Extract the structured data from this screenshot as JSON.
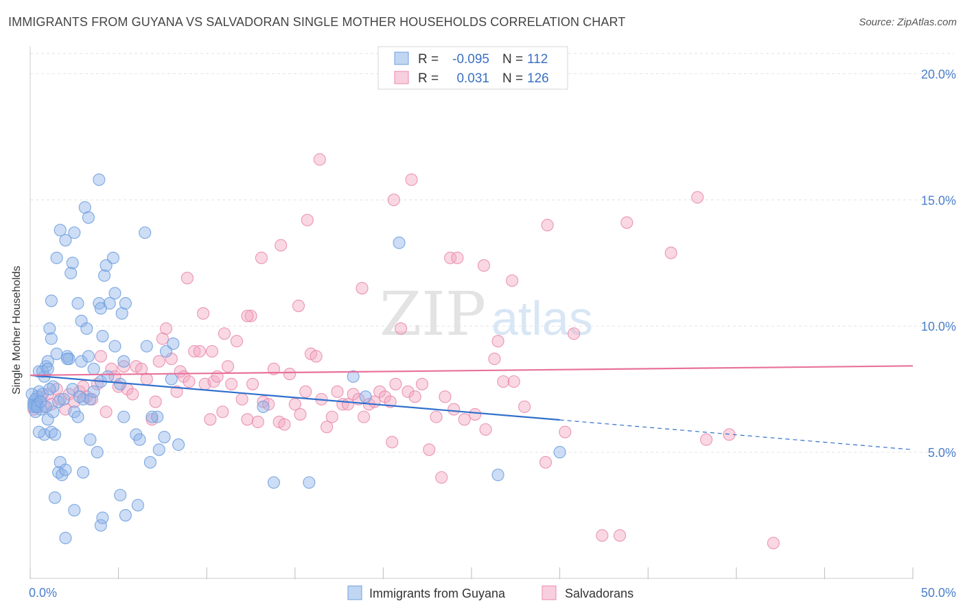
{
  "title": "IMMIGRANTS FROM GUYANA VS SALVADORAN SINGLE MOTHER HOUSEHOLDS CORRELATION CHART",
  "source": "Source: ZipAtlas.com",
  "watermark": {
    "zip": "ZIP",
    "atlas": "atlas"
  },
  "chart_data": {
    "type": "scatter",
    "ylabel": "Single Mother Households",
    "xlim": [
      0,
      50
    ],
    "ylim": [
      0,
      20.8
    ],
    "x_tick_labels": [
      "0.0%",
      "50.0%"
    ],
    "y_ticks": [
      5,
      10,
      15,
      20
    ],
    "y_tick_labels": [
      "5.0%",
      "10.0%",
      "15.0%",
      "20.0%"
    ],
    "grid": true,
    "legend": {
      "placement": "top-center",
      "rows": [
        {
          "r_label": "R =",
          "r_value": "-0.095",
          "n_label": "N =",
          "n_value": "112"
        },
        {
          "r_label": "R =",
          "r_value": "0.031",
          "n_label": "N =",
          "n_value": "126"
        }
      ]
    },
    "series": [
      {
        "name": "Immigrants from Guyana",
        "color": "#8db4e8",
        "line_color": "#2f6fcc",
        "trend": {
          "x0": 0,
          "y0": 8.05,
          "x1": 30,
          "y1": 6.28,
          "dash_to_x": 50,
          "dash_to_y": 5.1
        },
        "points": [
          [
            0.2,
            7.0
          ],
          [
            0.3,
            6.8
          ],
          [
            0.4,
            7.2
          ],
          [
            0.2,
            6.9
          ],
          [
            0.5,
            7.4
          ],
          [
            0.3,
            7.1
          ],
          [
            0.6,
            6.7
          ],
          [
            0.4,
            6.9
          ],
          [
            0.7,
            7.3
          ],
          [
            0.5,
            8.2
          ],
          [
            0.8,
            8.0
          ],
          [
            0.9,
            8.4
          ],
          [
            1.0,
            8.6
          ],
          [
            1.1,
            9.9
          ],
          [
            1.2,
            9.5
          ],
          [
            1.2,
            11.0
          ],
          [
            1.5,
            12.7
          ],
          [
            1.7,
            13.8
          ],
          [
            2.0,
            13.4
          ],
          [
            2.3,
            12.1
          ],
          [
            2.4,
            12.5
          ],
          [
            2.5,
            13.7
          ],
          [
            2.7,
            10.9
          ],
          [
            2.9,
            10.2
          ],
          [
            3.2,
            9.9
          ],
          [
            3.1,
            14.7
          ],
          [
            3.3,
            14.3
          ],
          [
            3.9,
            15.8
          ],
          [
            3.9,
            10.9
          ],
          [
            4.0,
            10.7
          ],
          [
            4.2,
            12.0
          ],
          [
            4.3,
            12.4
          ],
          [
            4.5,
            10.9
          ],
          [
            4.7,
            12.7
          ],
          [
            4.8,
            9.2
          ],
          [
            4.8,
            11.3
          ],
          [
            5.2,
            10.5
          ],
          [
            5.4,
            10.9
          ],
          [
            6.5,
            13.7
          ],
          [
            4.1,
            9.6
          ],
          [
            2.1,
            8.8
          ],
          [
            2.2,
            8.7
          ],
          [
            2.4,
            7.5
          ],
          [
            1.5,
            8.9
          ],
          [
            1.6,
            7.0
          ],
          [
            1.9,
            7.1
          ],
          [
            2.1,
            8.7
          ],
          [
            2.9,
            8.6
          ],
          [
            3.3,
            8.8
          ],
          [
            3.6,
            8.3
          ],
          [
            4.0,
            7.8
          ],
          [
            4.4,
            8.0
          ],
          [
            5.1,
            7.7
          ],
          [
            5.3,
            8.6
          ],
          [
            1.0,
            6.3
          ],
          [
            1.3,
            6.6
          ],
          [
            0.8,
            5.7
          ],
          [
            1.2,
            5.8
          ],
          [
            0.5,
            5.8
          ],
          [
            1.4,
            5.7
          ],
          [
            1.7,
            4.6
          ],
          [
            1.6,
            4.2
          ],
          [
            1.8,
            4.1
          ],
          [
            2.0,
            4.3
          ],
          [
            3.0,
            4.2
          ],
          [
            3.4,
            5.5
          ],
          [
            3.8,
            5.0
          ],
          [
            2.5,
            6.6
          ],
          [
            2.7,
            6.4
          ],
          [
            3.0,
            7.1
          ],
          [
            3.4,
            7.1
          ],
          [
            3.6,
            7.4
          ],
          [
            5.3,
            6.4
          ],
          [
            6.0,
            5.7
          ],
          [
            6.2,
            5.5
          ],
          [
            6.8,
            4.6
          ],
          [
            7.3,
            5.1
          ],
          [
            7.6,
            5.6
          ],
          [
            8.0,
            7.9
          ],
          [
            8.4,
            5.3
          ],
          [
            1.4,
            3.2
          ],
          [
            2.5,
            2.7
          ],
          [
            4.0,
            2.1
          ],
          [
            4.1,
            2.4
          ],
          [
            5.1,
            3.3
          ],
          [
            5.4,
            2.5
          ],
          [
            6.1,
            2.9
          ],
          [
            2.0,
            1.6
          ],
          [
            7.2,
            6.4
          ],
          [
            7.7,
            9.0
          ],
          [
            8.1,
            9.3
          ],
          [
            6.6,
            9.2
          ],
          [
            6.9,
            6.4
          ],
          [
            13.8,
            3.8
          ],
          [
            15.8,
            3.8
          ],
          [
            18.3,
            8.0
          ],
          [
            19.0,
            7.2
          ],
          [
            13.2,
            6.8
          ],
          [
            20.9,
            13.3
          ],
          [
            26.5,
            4.1
          ],
          [
            30.0,
            5.0
          ],
          [
            0.3,
            6.6
          ],
          [
            0.2,
            6.8
          ],
          [
            0.4,
            6.8
          ],
          [
            0.6,
            7.0
          ],
          [
            0.7,
            8.2
          ],
          [
            1.0,
            8.3
          ],
          [
            1.3,
            7.6
          ],
          [
            0.1,
            7.3
          ],
          [
            0.9,
            6.8
          ],
          [
            1.1,
            7.5
          ],
          [
            2.8,
            7.2
          ]
        ]
      },
      {
        "name": "Salvadorans",
        "color": "#f2a8c2",
        "line_color": "#e8719a",
        "trend": {
          "x0": 0,
          "y0": 8.05,
          "x1": 50,
          "y1": 8.42
        },
        "points": [
          [
            0.2,
            6.7
          ],
          [
            0.4,
            6.9
          ],
          [
            0.6,
            7.2
          ],
          [
            0.8,
            6.8
          ],
          [
            1.0,
            7.3
          ],
          [
            1.2,
            6.9
          ],
          [
            1.5,
            7.5
          ],
          [
            1.7,
            7.1
          ],
          [
            2.0,
            6.7
          ],
          [
            2.2,
            7.3
          ],
          [
            2.5,
            7.0
          ],
          [
            2.8,
            7.4
          ],
          [
            3.0,
            7.6
          ],
          [
            3.2,
            7.2
          ],
          [
            3.5,
            7.1
          ],
          [
            3.8,
            7.7
          ],
          [
            4.0,
            8.8
          ],
          [
            4.3,
            6.6
          ],
          [
            4.6,
            8.3
          ],
          [
            4.8,
            8.0
          ],
          [
            5.0,
            7.6
          ],
          [
            5.3,
            8.4
          ],
          [
            5.5,
            7.5
          ],
          [
            5.8,
            7.3
          ],
          [
            6.0,
            8.4
          ],
          [
            6.3,
            8.3
          ],
          [
            6.6,
            7.9
          ],
          [
            6.9,
            6.3
          ],
          [
            7.1,
            7.0
          ],
          [
            7.3,
            8.6
          ],
          [
            7.5,
            9.5
          ],
          [
            7.7,
            9.9
          ],
          [
            8.0,
            8.7
          ],
          [
            8.3,
            7.4
          ],
          [
            8.5,
            8.2
          ],
          [
            8.7,
            8.0
          ],
          [
            9.0,
            7.8
          ],
          [
            9.3,
            9.0
          ],
          [
            9.6,
            9.0
          ],
          [
            9.9,
            7.7
          ],
          [
            10.2,
            6.3
          ],
          [
            10.4,
            7.8
          ],
          [
            10.6,
            8.0
          ],
          [
            10.9,
            6.6
          ],
          [
            11.2,
            8.4
          ],
          [
            11.4,
            7.7
          ],
          [
            11.7,
            9.4
          ],
          [
            12.0,
            7.1
          ],
          [
            12.3,
            6.3
          ],
          [
            12.6,
            7.7
          ],
          [
            12.9,
            6.2
          ],
          [
            13.2,
            7.0
          ],
          [
            13.5,
            6.9
          ],
          [
            13.8,
            8.3
          ],
          [
            14.1,
            6.2
          ],
          [
            14.4,
            6.1
          ],
          [
            14.7,
            8.1
          ],
          [
            15.0,
            6.9
          ],
          [
            15.3,
            6.5
          ],
          [
            15.6,
            7.4
          ],
          [
            15.9,
            8.9
          ],
          [
            16.2,
            8.8
          ],
          [
            16.5,
            7.1
          ],
          [
            16.8,
            6.0
          ],
          [
            17.1,
            6.4
          ],
          [
            17.4,
            7.4
          ],
          [
            17.7,
            6.9
          ],
          [
            18.0,
            6.9
          ],
          [
            18.3,
            7.3
          ],
          [
            18.6,
            7.1
          ],
          [
            18.9,
            6.4
          ],
          [
            19.2,
            6.9
          ],
          [
            19.5,
            7.0
          ],
          [
            19.8,
            7.4
          ],
          [
            20.1,
            7.2
          ],
          [
            20.4,
            7.0
          ],
          [
            20.7,
            7.7
          ],
          [
            21.0,
            9.9
          ],
          [
            21.4,
            7.4
          ],
          [
            21.8,
            7.2
          ],
          [
            22.2,
            7.7
          ],
          [
            22.6,
            5.1
          ],
          [
            23.0,
            6.4
          ],
          [
            23.5,
            7.2
          ],
          [
            24.0,
            6.7
          ],
          [
            24.6,
            6.3
          ],
          [
            25.2,
            6.5
          ],
          [
            25.8,
            5.9
          ],
          [
            26.3,
            8.7
          ],
          [
            26.8,
            7.8
          ],
          [
            27.4,
            7.8
          ],
          [
            28.0,
            6.8
          ],
          [
            16.4,
            16.6
          ],
          [
            15.7,
            14.2
          ],
          [
            20.6,
            15.0
          ],
          [
            21.6,
            15.8
          ],
          [
            25.7,
            12.4
          ],
          [
            27.3,
            11.8
          ],
          [
            23.8,
            12.7
          ],
          [
            24.2,
            12.7
          ],
          [
            29.3,
            14.0
          ],
          [
            33.8,
            14.1
          ],
          [
            37.8,
            15.1
          ],
          [
            36.3,
            12.9
          ],
          [
            30.8,
            9.7
          ],
          [
            26.5,
            9.4
          ],
          [
            18.8,
            11.5
          ],
          [
            14.2,
            13.2
          ],
          [
            13.1,
            12.7
          ],
          [
            12.5,
            10.4
          ],
          [
            12.3,
            10.4
          ],
          [
            11.0,
            9.7
          ],
          [
            10.3,
            9.0
          ],
          [
            9.8,
            10.5
          ],
          [
            8.9,
            11.9
          ],
          [
            15.2,
            10.8
          ],
          [
            29.2,
            4.6
          ],
          [
            32.4,
            1.7
          ],
          [
            33.4,
            1.7
          ],
          [
            42.1,
            1.4
          ],
          [
            38.3,
            5.5
          ],
          [
            39.6,
            5.7
          ],
          [
            30.3,
            5.8
          ],
          [
            23.3,
            4.0
          ],
          [
            20.5,
            5.4
          ]
        ]
      }
    ]
  }
}
